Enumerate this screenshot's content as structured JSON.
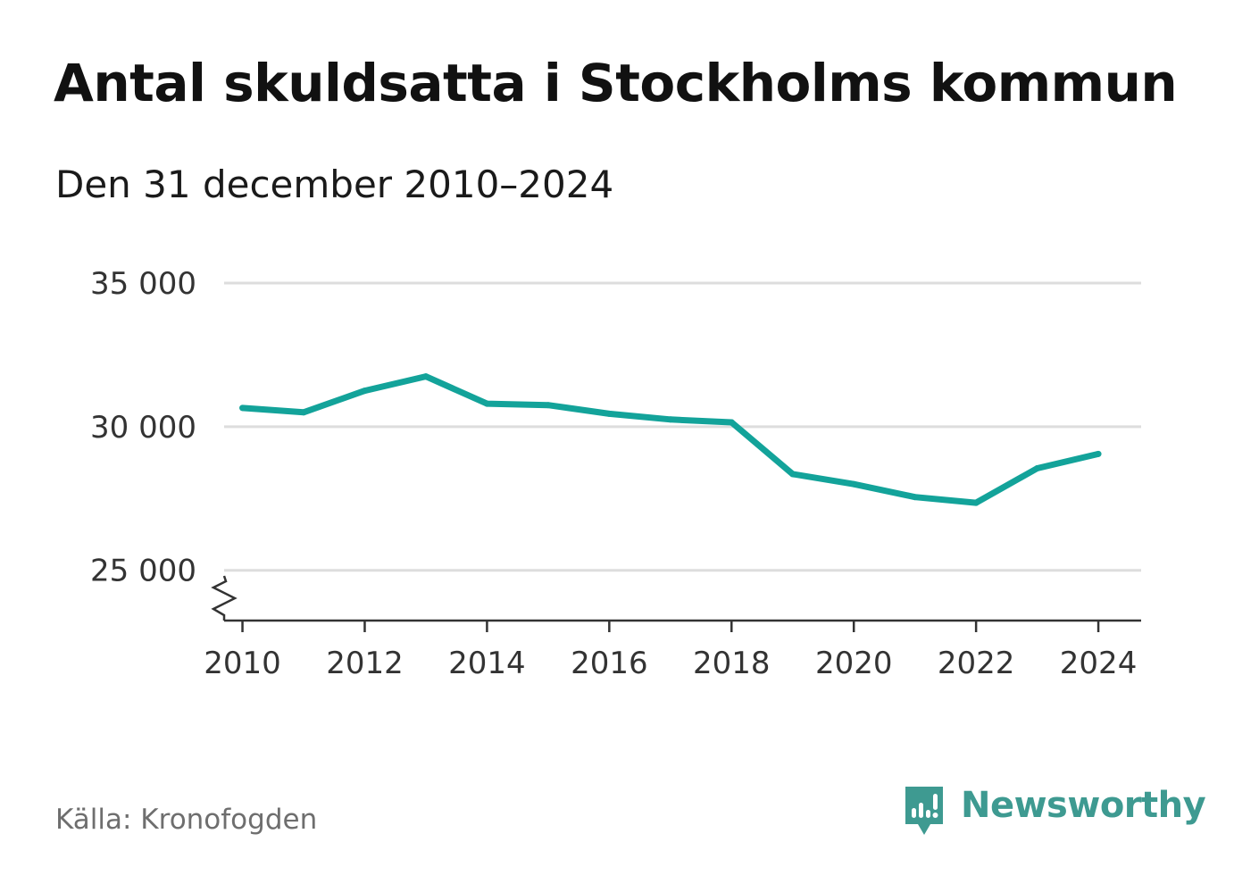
{
  "header": {
    "title": "Antal skuldsatta i Stockholms kommun",
    "subtitle": "Den 31 december 2010–2024"
  },
  "footer": {
    "source": "Källa: Kronofogden",
    "brand": "Newsworthy"
  },
  "colors": {
    "line": "#13a39a",
    "grid": "#dddddd",
    "axis": "#333333",
    "brand": "#3e9a91"
  },
  "icons": {
    "axis_break": "axis-break-icon",
    "logo": "newsworthy-logo-icon"
  },
  "chart_data": {
    "type": "line",
    "title": "Antal skuldsatta i Stockholms kommun",
    "subtitle": "Den 31 december 2010–2024",
    "xlabel": "",
    "ylabel": "",
    "x": [
      2010,
      2011,
      2012,
      2013,
      2014,
      2015,
      2016,
      2017,
      2018,
      2019,
      2020,
      2021,
      2022,
      2023,
      2024
    ],
    "series": [
      {
        "name": "Antal skuldsatta",
        "values": [
          30650,
          30500,
          31250,
          31750,
          30800,
          30750,
          30450,
          30250,
          30150,
          28350,
          28000,
          27550,
          27350,
          28550,
          29050
        ]
      }
    ],
    "ylim": [
      23250,
      35000
    ],
    "xlim": [
      2009.7,
      2024.7
    ],
    "y_ticks": [
      {
        "value": 25000,
        "label": "25 000"
      },
      {
        "value": 30000,
        "label": "30 000"
      },
      {
        "value": 35000,
        "label": "35 000"
      }
    ],
    "x_ticks": [
      {
        "value": 2010,
        "label": "2010"
      },
      {
        "value": 2012,
        "label": "2012"
      },
      {
        "value": 2014,
        "label": "2014"
      },
      {
        "value": 2016,
        "label": "2016"
      },
      {
        "value": 2018,
        "label": "2018"
      },
      {
        "value": 2020,
        "label": "2020"
      },
      {
        "value": 2022,
        "label": "2022"
      },
      {
        "value": 2024,
        "label": "2024"
      }
    ],
    "grid": true,
    "y_axis_break": true,
    "legend": "none"
  }
}
